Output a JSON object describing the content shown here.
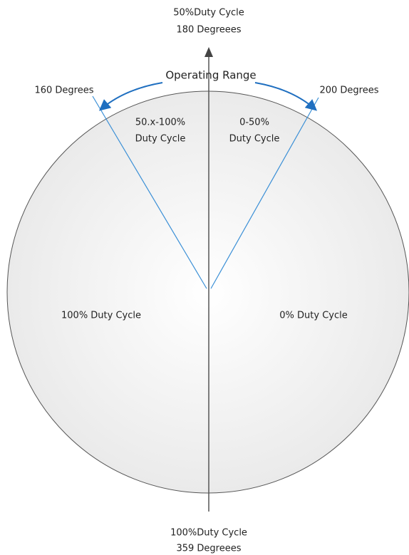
{
  "top_label": {
    "line1": "50%Duty Cycle",
    "line2": "180 Degreees"
  },
  "operating_range": "Operating Range",
  "left_limit": "160 Degrees",
  "right_limit": "200 Degrees",
  "left_sector": {
    "line1": "50.x-100%",
    "line2": "Duty Cycle"
  },
  "right_sector": {
    "line1": "0-50%",
    "line2": "Duty Cycle"
  },
  "left_half": "100% Duty Cycle",
  "right_half": "0% Duty Cycle",
  "bottom_label": {
    "line1": "100%Duty Cycle",
    "line2": "359 Degreees"
  }
}
